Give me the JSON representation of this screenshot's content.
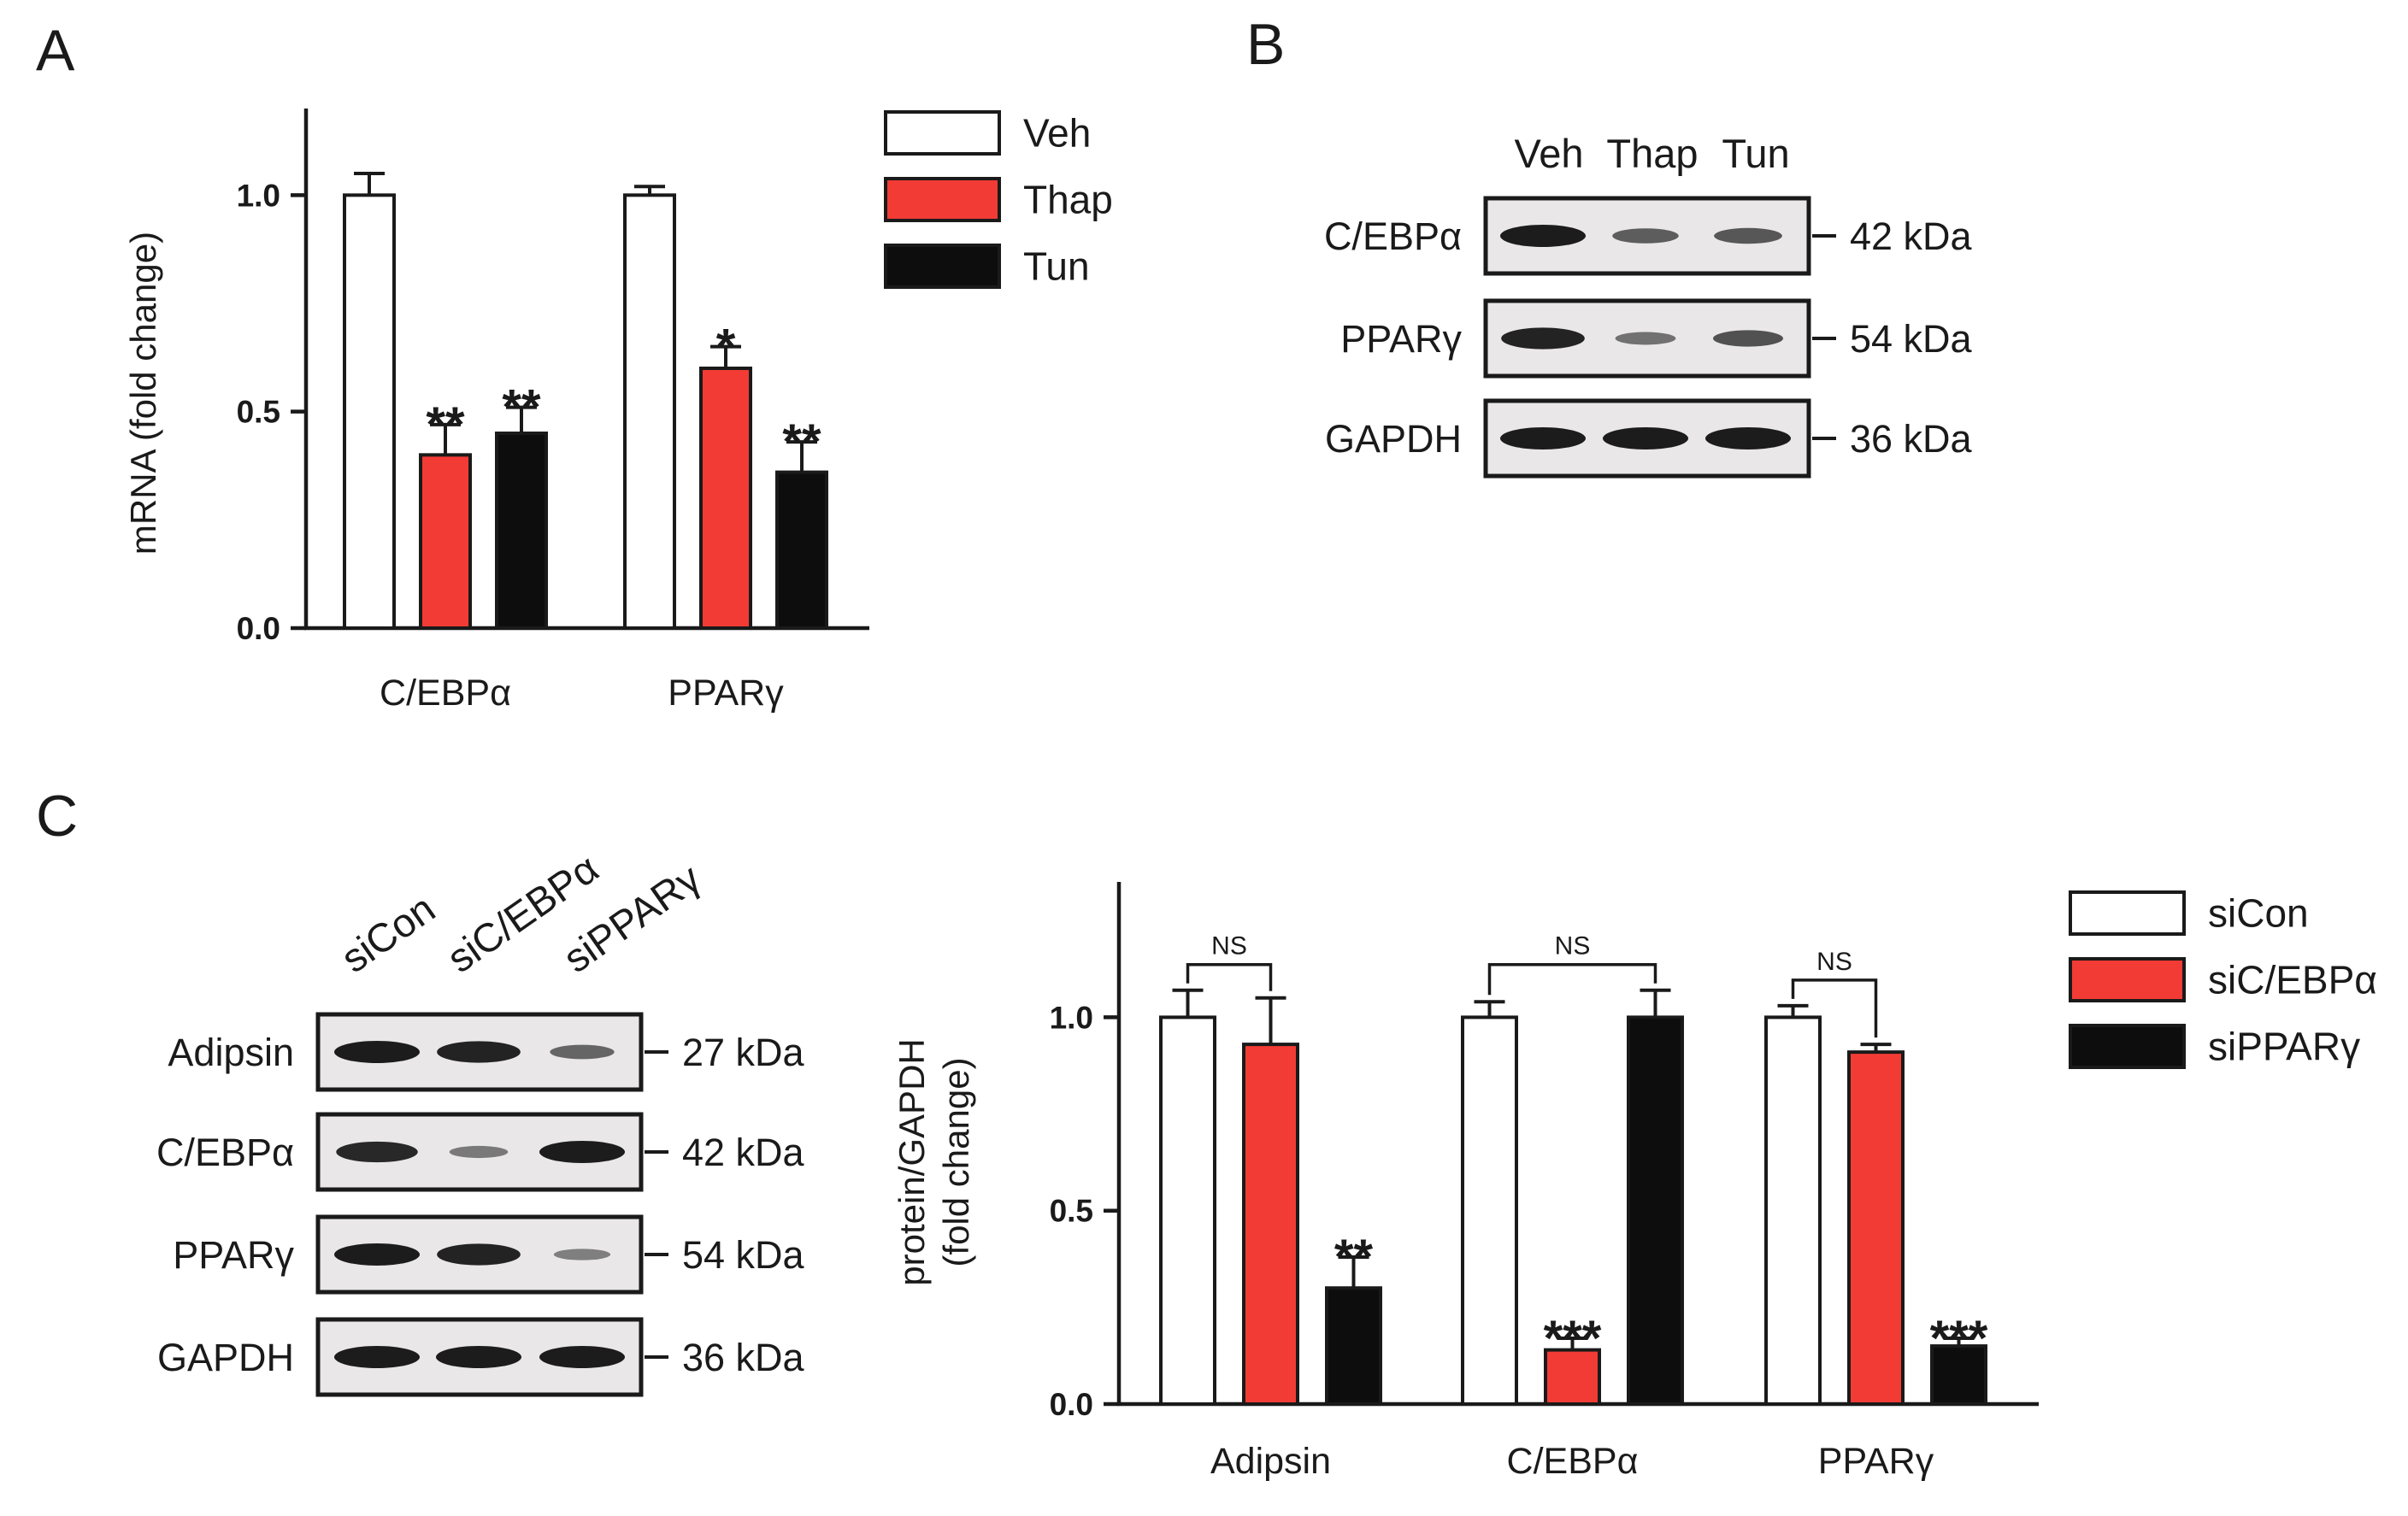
{
  "colors": {
    "veh": "#ffffff",
    "thap": "#f23b35",
    "tun": "#0d0d0d",
    "band": "#1c1c1c"
  },
  "panelA": {
    "letter": "A",
    "chart_data": {
      "type": "bar",
      "title": "",
      "xlabel": "",
      "ylabel": "mRNA (fold change)",
      "ylim": [
        0,
        1.2
      ],
      "yticks": [
        0.0,
        0.5,
        1.0
      ],
      "ytick_labels": [
        "0.0",
        "0.5",
        "1.0"
      ],
      "categories": [
        "C/EBPα",
        "PPARγ"
      ],
      "series": [
        {
          "name": "Veh",
          "color": "#ffffff",
          "values": [
            1.0,
            1.0
          ],
          "errors": [
            0.05,
            0.02
          ],
          "sig": [
            "",
            ""
          ]
        },
        {
          "name": "Thap",
          "color": "#f23b35",
          "values": [
            0.4,
            0.6
          ],
          "errors": [
            0.07,
            0.05
          ],
          "sig": [
            "**",
            "*"
          ]
        },
        {
          "name": "Tun",
          "color": "#0d0d0d",
          "values": [
            0.45,
            0.36
          ],
          "errors": [
            0.06,
            0.07
          ],
          "sig": [
            "**",
            "**"
          ]
        }
      ],
      "legend_position": "right"
    }
  },
  "panelB": {
    "letter": "B",
    "lanes": [
      "Veh",
      "Thap",
      "Tun"
    ],
    "rows": [
      {
        "label": "C/EBPα",
        "kda": "42 kDa",
        "intensity": [
          1.0,
          0.5,
          0.55
        ]
      },
      {
        "label": "PPARγ",
        "kda": "54 kDa",
        "intensity": [
          0.95,
          0.35,
          0.6
        ]
      },
      {
        "label": "GAPDH",
        "kda": "36 kDa",
        "intensity": [
          1.0,
          1.0,
          1.0
        ]
      }
    ]
  },
  "panelC": {
    "letter": "C",
    "lanes": [
      "siCon",
      "siC/EBPα",
      "siPPARγ"
    ],
    "rows": [
      {
        "label": "Adipsin",
        "kda": "27 kDa",
        "intensity": [
          1.0,
          0.95,
          0.45
        ]
      },
      {
        "label": "C/EBPα",
        "kda": "42 kDa",
        "intensity": [
          0.9,
          0.3,
          1.0
        ]
      },
      {
        "label": "PPARγ",
        "kda": "54 kDa",
        "intensity": [
          1.0,
          0.95,
          0.25
        ]
      },
      {
        "label": "GAPDH",
        "kda": "36 kDa",
        "intensity": [
          1.0,
          1.0,
          1.0
        ]
      }
    ],
    "chart_data": {
      "type": "bar",
      "title": "",
      "xlabel": "",
      "ylabel": "protein/GAPDH",
      "ylabel_2": "(fold change)",
      "ylim": [
        0,
        1.35
      ],
      "yticks": [
        0.0,
        0.5,
        1.0
      ],
      "ytick_labels": [
        "0.0",
        "0.5",
        "1.0"
      ],
      "categories": [
        "Adipsin",
        "C/EBPα",
        "PPARγ"
      ],
      "series": [
        {
          "name": "siCon",
          "color": "#ffffff",
          "values": [
            1.0,
            1.0,
            1.0
          ],
          "errors": [
            0.07,
            0.04,
            0.03
          ],
          "sig": [
            "",
            "",
            ""
          ]
        },
        {
          "name": "siC/EBPα",
          "color": "#f23b35",
          "values": [
            0.93,
            0.14,
            0.91
          ],
          "errors": [
            0.12,
            0.03,
            0.02
          ],
          "sig": [
            "",
            "***",
            ""
          ]
        },
        {
          "name": "siPPARγ",
          "color": "#0d0d0d",
          "values": [
            0.3,
            1.0,
            0.15
          ],
          "errors": [
            0.08,
            0.07,
            0.02
          ],
          "sig": [
            "**",
            "",
            "***"
          ]
        }
      ],
      "comparisons": [
        {
          "category": "Adipsin",
          "between": [
            "siCon",
            "siC/EBPα"
          ],
          "label": "NS"
        },
        {
          "category": "C/EBPα",
          "between": [
            "siCon",
            "siPPARγ"
          ],
          "label": "NS"
        },
        {
          "category": "PPARγ",
          "between": [
            "siCon",
            "siC/EBPα"
          ],
          "label": "NS"
        }
      ],
      "legend_position": "right"
    }
  }
}
